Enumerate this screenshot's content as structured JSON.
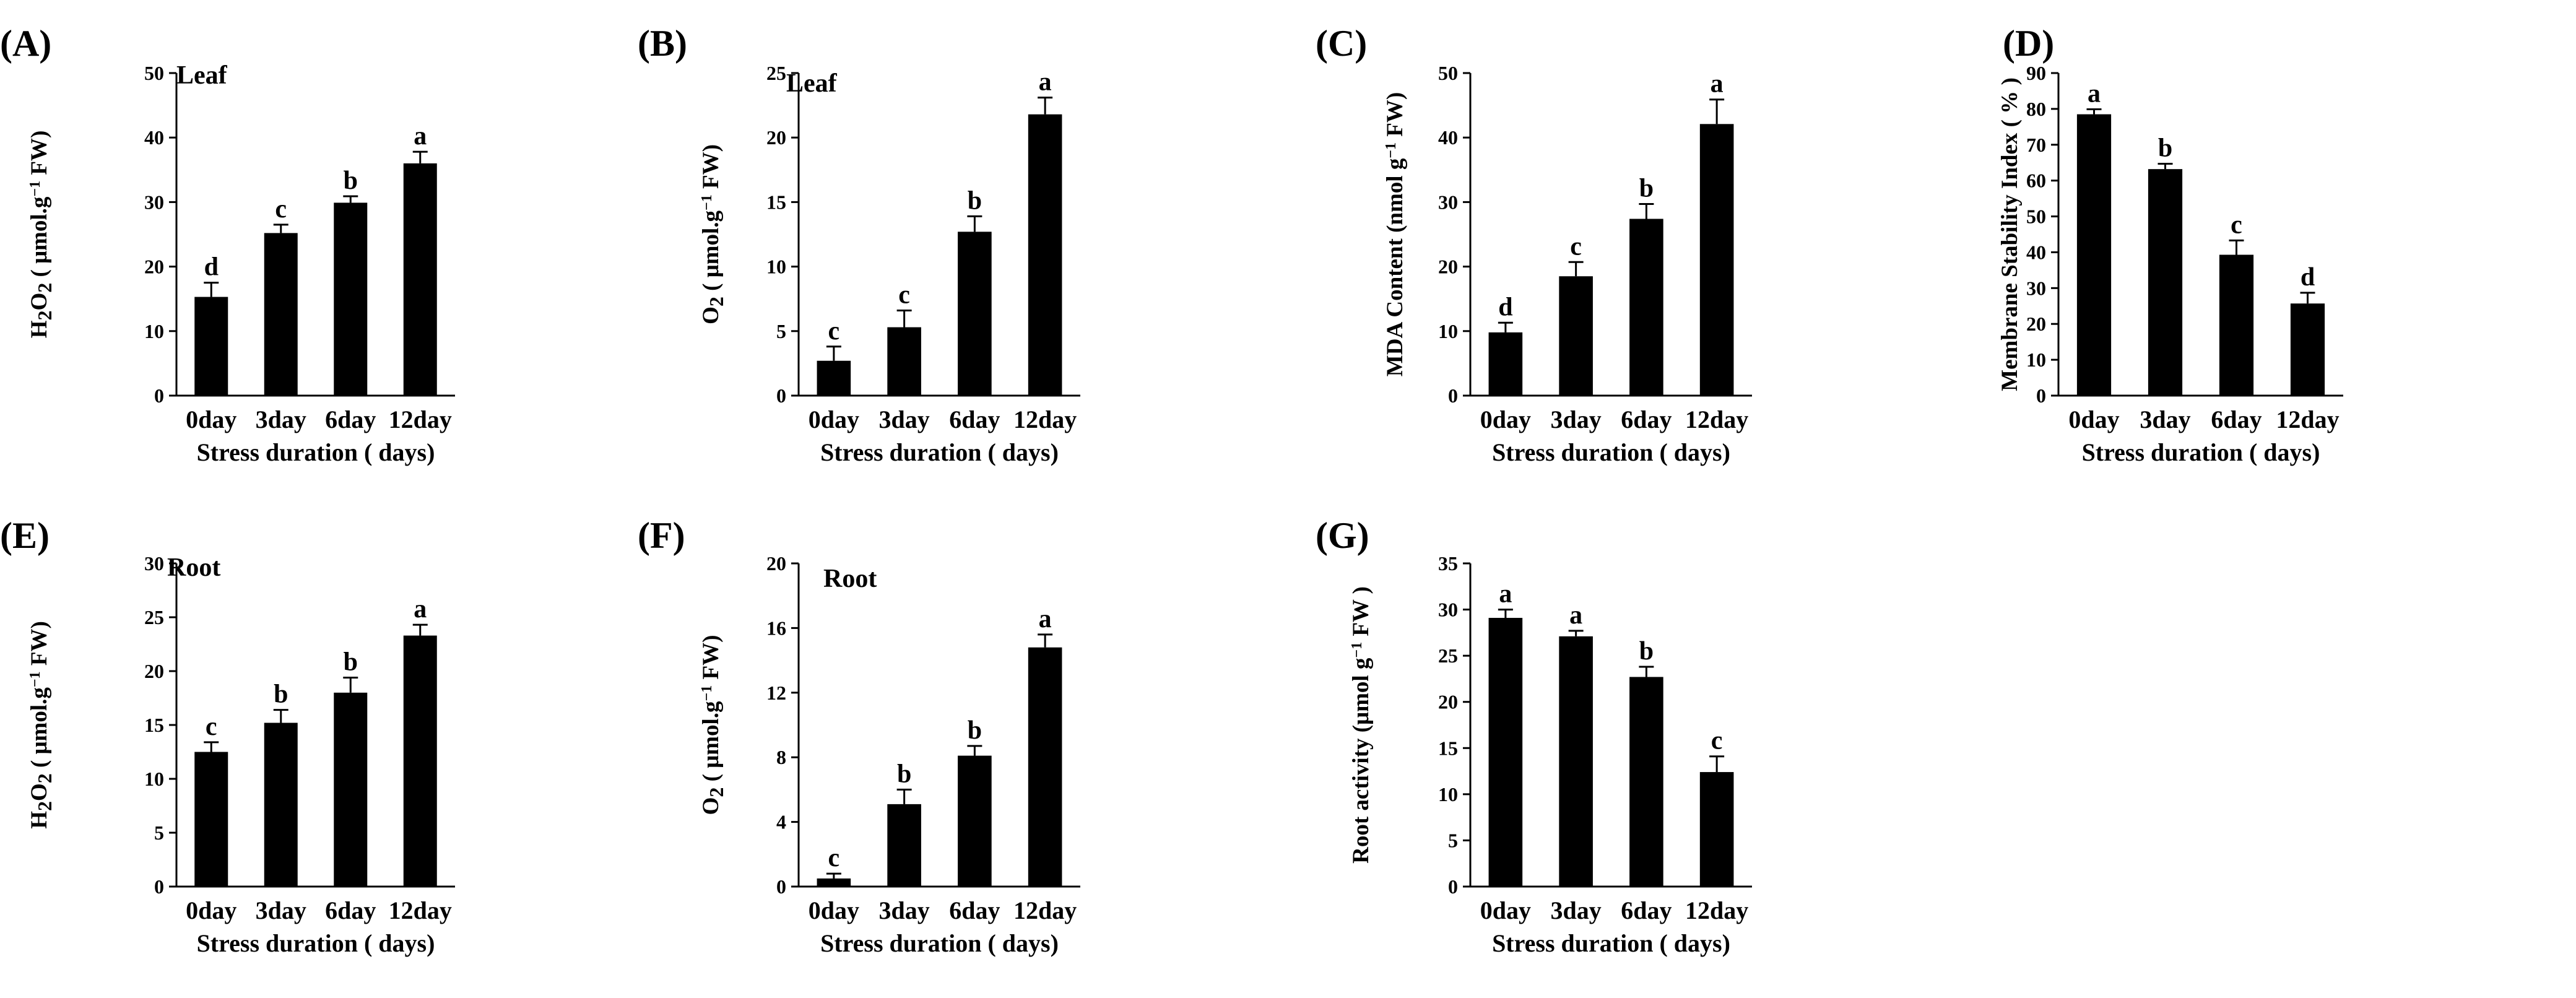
{
  "figure": {
    "x_categories": [
      "0day",
      "3day",
      "6day",
      "12day"
    ],
    "xlabel": "Stress duration ( days)"
  },
  "chart_data": [
    {
      "panel": "(A)",
      "type": "bar",
      "tag": "Leaf",
      "title": "",
      "ylabel": "H2O2 ( μmol.g⁻¹ FW)",
      "ylabel_parts": [
        {
          "t": "H"
        },
        {
          "t": "2",
          "sub": true
        },
        {
          "t": "O"
        },
        {
          "t": "2",
          "sub": true
        },
        {
          "t": " ( μmol.g"
        },
        {
          "t": "−1",
          "sup": true
        },
        {
          "t": " FW)"
        }
      ],
      "xlabel": "Stress duration ( days)",
      "categories": [
        "0day",
        "3day",
        "6day",
        "12day"
      ],
      "values": [
        15.3,
        25.2,
        29.9,
        36.0
      ],
      "errors": [
        2.2,
        1.3,
        1.0,
        1.8
      ],
      "letters": [
        "d",
        "c",
        "b",
        "a"
      ],
      "ylim": [
        0,
        50
      ],
      "ticks": [
        0,
        10,
        20,
        30,
        40,
        50
      ]
    },
    {
      "panel": "(B)",
      "type": "bar",
      "tag": "Leaf",
      "title": "",
      "ylabel": "O2 ( μmol.g⁻¹ FW)",
      "ylabel_parts": [
        {
          "t": "O"
        },
        {
          "t": "2",
          "sub": true
        },
        {
          "t": " ( μmol.g"
        },
        {
          "t": "−1",
          "sup": true
        },
        {
          "t": " FW)"
        }
      ],
      "xlabel": "Stress duration ( days)",
      "categories": [
        "0day",
        "3day",
        "6day",
        "12day"
      ],
      "values": [
        2.7,
        5.3,
        12.7,
        21.8
      ],
      "errors": [
        1.1,
        1.3,
        1.2,
        1.3
      ],
      "letters": [
        "c",
        "c",
        "b",
        "a"
      ],
      "ylim": [
        0,
        25
      ],
      "ticks": [
        0,
        5,
        10,
        15,
        20,
        25
      ]
    },
    {
      "panel": "(C)",
      "type": "bar",
      "tag": "",
      "title": "",
      "ylabel": "MDA Content (nmol g⁻¹ FW)",
      "ylabel_parts": [
        {
          "t": "MDA Content (nmol g"
        },
        {
          "t": "−1",
          "sup": true
        },
        {
          "t": " FW)"
        }
      ],
      "xlabel": "Stress duration ( days)",
      "categories": [
        "0day",
        "3day",
        "6day",
        "12day"
      ],
      "values": [
        9.8,
        18.5,
        27.4,
        42.1
      ],
      "errors": [
        1.5,
        2.2,
        2.3,
        3.8
      ],
      "letters": [
        "d",
        "c",
        "b",
        "a"
      ],
      "ylim": [
        0,
        50
      ],
      "ticks": [
        0,
        10,
        20,
        30,
        40,
        50
      ]
    },
    {
      "panel": "(D)",
      "type": "bar",
      "tag": "",
      "title": "",
      "ylabel": "Membrane Stability Index ( % )",
      "ylabel_parts": [
        {
          "t": "Membrane Stability Index ( % )"
        }
      ],
      "xlabel": "Stress duration ( days)",
      "categories": [
        "0day",
        "3day",
        "6day",
        "12day"
      ],
      "values": [
        78.5,
        63.2,
        39.3,
        25.7
      ],
      "errors": [
        1.4,
        1.5,
        4.0,
        3.0
      ],
      "letters": [
        "a",
        "b",
        "c",
        "d"
      ],
      "ylim": [
        0,
        90
      ],
      "ticks": [
        0,
        10,
        20,
        30,
        40,
        50,
        60,
        70,
        80,
        90
      ]
    },
    {
      "panel": "(E)",
      "type": "bar",
      "tag": "Root",
      "title": "",
      "ylabel": "H2O2 ( μmol.g⁻¹ FW)",
      "ylabel_parts": [
        {
          "t": "H"
        },
        {
          "t": "2",
          "sub": true
        },
        {
          "t": "O"
        },
        {
          "t": "2",
          "sub": true
        },
        {
          "t": " ( μmol.g"
        },
        {
          "t": "−1",
          "sup": true
        },
        {
          "t": " FW)"
        }
      ],
      "xlabel": "Stress duration ( days)",
      "categories": [
        "0day",
        "3day",
        "6day",
        "12day"
      ],
      "values": [
        12.5,
        15.2,
        18.0,
        23.3
      ],
      "errors": [
        0.9,
        1.2,
        1.4,
        1.0
      ],
      "letters": [
        "c",
        "b",
        "b",
        "a"
      ],
      "ylim": [
        0,
        30
      ],
      "ticks": [
        0,
        5,
        10,
        15,
        20,
        25,
        30
      ]
    },
    {
      "panel": "(F)",
      "type": "bar",
      "tag": "Root",
      "title": "",
      "ylabel": "O2 ( μmol.g⁻¹ FW)",
      "ylabel_parts": [
        {
          "t": "O"
        },
        {
          "t": "2",
          "sub": true
        },
        {
          "t": " ( μmol.g"
        },
        {
          "t": "−1",
          "sup": true
        },
        {
          "t": " FW)"
        }
      ],
      "xlabel": "Stress duration ( days)",
      "categories": [
        "0day",
        "3day",
        "6day",
        "12day"
      ],
      "values": [
        0.5,
        5.1,
        8.1,
        14.8
      ],
      "errors": [
        0.3,
        0.9,
        0.6,
        0.8
      ],
      "letters": [
        "c",
        "b",
        "b",
        "a"
      ],
      "ylim": [
        0,
        20
      ],
      "ticks": [
        0,
        4,
        8,
        12,
        16,
        20
      ]
    },
    {
      "panel": "(G)",
      "type": "bar",
      "tag": "",
      "title": "",
      "ylabel": "Root activity (μmol g⁻¹ FW )",
      "ylabel_parts": [
        {
          "t": "Root activity (μmol g"
        },
        {
          "t": "−1",
          "sup": true
        },
        {
          "t": " FW )"
        }
      ],
      "xlabel": "Stress duration ( days)",
      "categories": [
        "0day",
        "3day",
        "6day",
        "12day"
      ],
      "values": [
        29.1,
        27.1,
        22.7,
        12.4
      ],
      "errors": [
        0.9,
        0.6,
        1.1,
        1.7
      ],
      "letters": [
        "a",
        "a",
        "b",
        "c"
      ],
      "ylim": [
        0,
        35
      ],
      "ticks": [
        0,
        5,
        10,
        15,
        20,
        25,
        30,
        35
      ]
    }
  ]
}
